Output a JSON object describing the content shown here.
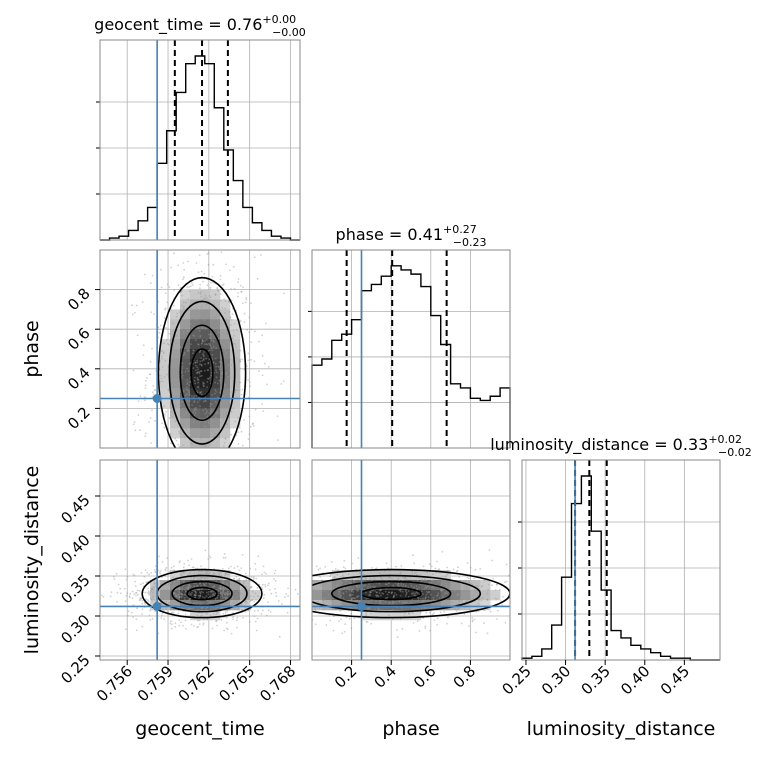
{
  "colors": {
    "truth": "#4682b4",
    "hist": "#000000",
    "grid": "#b0b0b0",
    "samples": "#9a9a9a",
    "frame": "#888888"
  },
  "chart_data": {
    "type": "corner",
    "parameters": [
      "geocent_time",
      "phase",
      "luminosity_distance"
    ],
    "truths": {
      "geocent_time": 0.7582,
      "phase": 0.25,
      "luminosity_distance": 0.312
    },
    "grid": true,
    "diagonal": [
      {
        "param": "geocent_time",
        "title": {
          "label": "geocent_time = 0.76",
          "plus": "+0.00",
          "minus": "−0.00"
        },
        "xlim": [
          0.754,
          0.7687
        ],
        "quantiles": [
          0.7595,
          0.7615,
          0.7634
        ],
        "bins": [
          0.754,
          0.7547,
          0.7554,
          0.7561,
          0.7568,
          0.7575,
          0.7582,
          0.7589,
          0.7596,
          0.7603,
          0.761,
          0.7617,
          0.7624,
          0.7631,
          0.7638,
          0.7645,
          0.7652,
          0.7659,
          0.7666,
          0.7673,
          0.768,
          0.7687
        ],
        "counts": [
          0,
          1,
          2,
          5,
          10,
          17,
          40,
          57,
          77,
          92,
          96,
          92,
          69,
          47,
          31,
          17,
          9,
          5,
          2,
          1,
          0
        ]
      },
      {
        "param": "phase",
        "title": {
          "label": "phase = 0.41",
          "plus": "+0.27",
          "minus": "−0.23"
        },
        "xlim": [
          0.0,
          1.0
        ],
        "quantiles": [
          0.175,
          0.405,
          0.68
        ],
        "bins": [
          0.0,
          0.05,
          0.1,
          0.15,
          0.2,
          0.25,
          0.3,
          0.35,
          0.4,
          0.45,
          0.5,
          0.55,
          0.6,
          0.65,
          0.7,
          0.75,
          0.8,
          0.85,
          0.9,
          0.95,
          1.0
        ],
        "counts": [
          40,
          43,
          52,
          55,
          62,
          76,
          79,
          83,
          88,
          86,
          84,
          78,
          64,
          50,
          31,
          29,
          24,
          23,
          25,
          29
        ]
      },
      {
        "param": "luminosity_distance",
        "title": {
          "label": "luminosity_distance = 0.33",
          "plus": "+0.02",
          "minus": "−0.02"
        },
        "xlim": [
          0.245,
          0.495
        ],
        "quantiles": [
          0.312,
          0.33,
          0.352
        ],
        "bins": [
          0.245,
          0.2575,
          0.27,
          0.2825,
          0.295,
          0.3075,
          0.32,
          0.3325,
          0.345,
          0.3575,
          0.37,
          0.3825,
          0.395,
          0.4075,
          0.42,
          0.4325,
          0.445,
          0.4575,
          0.47,
          0.4825,
          0.495
        ],
        "counts": [
          1,
          2,
          6,
          19,
          45,
          85,
          100,
          70,
          38,
          16,
          12,
          8,
          6,
          4,
          2,
          1,
          1,
          0,
          0,
          0
        ]
      }
    ],
    "pairs": [
      {
        "x": "geocent_time",
        "y": "phase",
        "xlim": [
          0.754,
          0.7687
        ],
        "ylim": [
          0.0,
          1.0
        ],
        "center": [
          0.7615,
          0.38
        ],
        "spread": [
          0.0016,
          0.24
        ]
      },
      {
        "x": "geocent_time",
        "y": "luminosity_distance",
        "xlim": [
          0.754,
          0.7687
        ],
        "ylim": [
          0.245,
          0.495
        ],
        "center": [
          0.7615,
          0.328
        ],
        "spread": [
          0.0022,
          0.015
        ]
      },
      {
        "x": "phase",
        "y": "luminosity_distance",
        "xlim": [
          0.0,
          1.0
        ],
        "ylim": [
          0.245,
          0.495
        ],
        "center": [
          0.4,
          0.328
        ],
        "spread": [
          0.3,
          0.015
        ]
      }
    ],
    "ticks": {
      "geocent_time": [
        "0.756",
        "0.759",
        "0.762",
        "0.765",
        "0.768"
      ],
      "phase": [
        "0.2",
        "0.4",
        "0.6",
        "0.8"
      ],
      "luminosity_distance": [
        "0.25",
        "0.30",
        "0.35",
        "0.40",
        "0.45"
      ]
    },
    "tick_values": {
      "geocent_time": [
        0.756,
        0.759,
        0.762,
        0.765,
        0.768
      ],
      "phase": [
        0.2,
        0.4,
        0.6,
        0.8
      ],
      "luminosity_distance": [
        0.25,
        0.3,
        0.35,
        0.4,
        0.45
      ]
    },
    "axis_labels": {
      "x": [
        "geocent_time",
        "phase",
        "luminosity_distance"
      ],
      "y": [
        "phase",
        "luminosity_distance"
      ]
    }
  }
}
